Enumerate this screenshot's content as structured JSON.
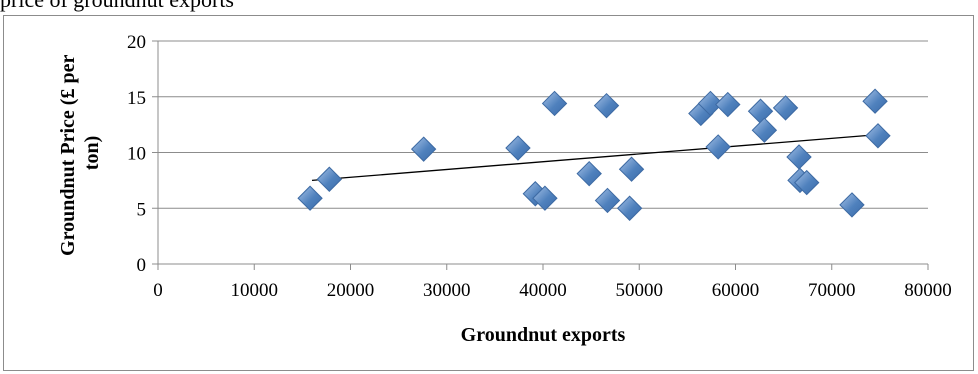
{
  "top_text": "price of groundnut exports",
  "chart_data": {
    "type": "scatter",
    "title": "",
    "xlabel": "Groundnut exports",
    "ylabel_lines": [
      "Groundnut Price (£ per",
      "ton)"
    ],
    "xlim": [
      0,
      80000
    ],
    "ylim": [
      0,
      20
    ],
    "x_ticks": [
      0,
      10000,
      20000,
      30000,
      40000,
      50000,
      60000,
      70000,
      80000
    ],
    "y_ticks": [
      0,
      5,
      10,
      15,
      20
    ],
    "grid": "horizontal",
    "legend": "none",
    "marker": "diamond",
    "marker_color": "#4f81bd",
    "trendline": {
      "type": "linear",
      "from": [
        16000,
        7.5
      ],
      "to": [
        74800,
        11.6
      ]
    },
    "points": [
      [
        15800,
        5.9
      ],
      [
        17800,
        7.6
      ],
      [
        27600,
        10.3
      ],
      [
        37400,
        10.4
      ],
      [
        39200,
        6.3
      ],
      [
        40200,
        5.9
      ],
      [
        41200,
        14.4
      ],
      [
        44800,
        8.1
      ],
      [
        46600,
        14.2
      ],
      [
        46700,
        5.7
      ],
      [
        49000,
        5.0
      ],
      [
        49200,
        8.5
      ],
      [
        56400,
        13.5
      ],
      [
        57400,
        14.4
      ],
      [
        58200,
        10.5
      ],
      [
        59200,
        14.3
      ],
      [
        62600,
        13.7
      ],
      [
        63000,
        12.0
      ],
      [
        65200,
        14.0
      ],
      [
        66600,
        9.6
      ],
      [
        66700,
        7.5
      ],
      [
        67400,
        7.3
      ],
      [
        72100,
        5.3
      ],
      [
        74500,
        14.6
      ],
      [
        74800,
        11.5
      ]
    ]
  }
}
